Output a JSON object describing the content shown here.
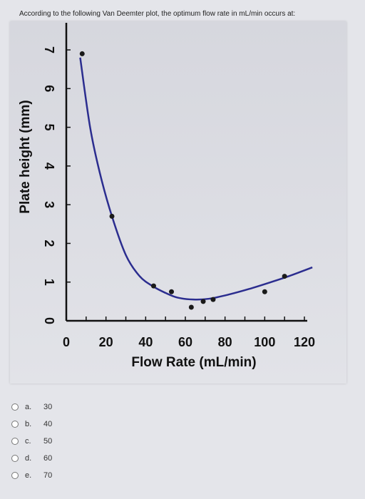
{
  "question": {
    "text": "According to the following Van Deemter plot, the optimum flow rate in mL/min occurs at:"
  },
  "chart_data": {
    "type": "line",
    "xlabel": "Flow Rate (mL/min)",
    "ylabel": "Plate height (mm)",
    "xlim": [
      0,
      120
    ],
    "ylim": [
      0,
      7
    ],
    "x_ticks": [
      0,
      20,
      40,
      60,
      80,
      100,
      120
    ],
    "x_tick_labels": [
      "0",
      "20",
      "40",
      "60",
      "80",
      "100",
      "120"
    ],
    "y_ticks": [
      0,
      1,
      2,
      3,
      4,
      5,
      6,
      7
    ],
    "y_tick_labels": [
      "0",
      "1",
      "2",
      "3",
      "4",
      "5",
      "6",
      "7"
    ],
    "points": [
      {
        "x": 8,
        "y": 6.9
      },
      {
        "x": 23,
        "y": 2.7
      },
      {
        "x": 44,
        "y": 0.9
      },
      {
        "x": 53,
        "y": 0.75
      },
      {
        "x": 63,
        "y": 0.35
      },
      {
        "x": 69,
        "y": 0.5
      },
      {
        "x": 74,
        "y": 0.55
      },
      {
        "x": 100,
        "y": 0.75
      },
      {
        "x": 110,
        "y": 1.15
      }
    ],
    "curve": [
      {
        "x": 7,
        "y": 6.8
      },
      {
        "x": 12,
        "y": 5.0
      },
      {
        "x": 17,
        "y": 3.8
      },
      {
        "x": 23,
        "y": 2.7
      },
      {
        "x": 30,
        "y": 1.7
      },
      {
        "x": 37,
        "y": 1.15
      },
      {
        "x": 44,
        "y": 0.88
      },
      {
        "x": 50,
        "y": 0.72
      },
      {
        "x": 56,
        "y": 0.6
      },
      {
        "x": 64,
        "y": 0.55
      },
      {
        "x": 72,
        "y": 0.57
      },
      {
        "x": 82,
        "y": 0.68
      },
      {
        "x": 92,
        "y": 0.82
      },
      {
        "x": 102,
        "y": 0.98
      },
      {
        "x": 112,
        "y": 1.15
      },
      {
        "x": 124,
        "y": 1.38
      }
    ],
    "colors": {
      "curve": "#2b2d8f",
      "points": "#1a1a1a",
      "axes": "#111111"
    }
  },
  "options": [
    {
      "letter": "a.",
      "value": "30"
    },
    {
      "letter": "b.",
      "value": "40"
    },
    {
      "letter": "c.",
      "value": "50"
    },
    {
      "letter": "d.",
      "value": "60"
    },
    {
      "letter": "e.",
      "value": "70"
    }
  ]
}
